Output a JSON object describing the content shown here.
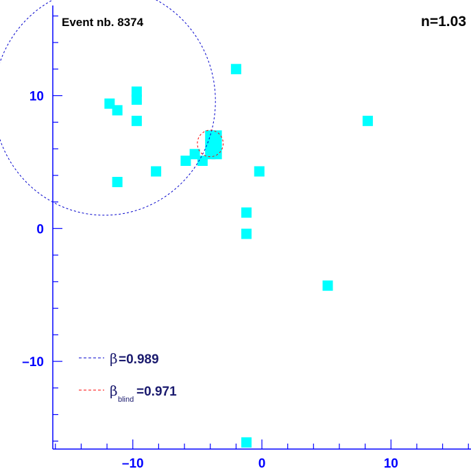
{
  "colors": {
    "axis": "#0000ff",
    "text": "#1a1a6e",
    "hit": "#00ffff",
    "ring_beta": "#0000cc",
    "ring_blind": "#ff0000"
  },
  "header": {
    "event_label": "Event nb. 8374",
    "index_label": "n=1.03"
  },
  "legend": [
    {
      "symbol": "β",
      "subscript": "",
      "value": "=0.989",
      "color": "#0000cc"
    },
    {
      "symbol": "β",
      "subscript": "blind",
      "value": "=0.971",
      "color": "#ff0000"
    }
  ],
  "chart_data": {
    "type": "scatter",
    "title": "",
    "xlabel": "",
    "ylabel": "",
    "xlim": [
      -16.2,
      16.2
    ],
    "ylim": [
      -16.6,
      17.2
    ],
    "x_ticks": [
      -10,
      0,
      10
    ],
    "y_ticks": [
      -10,
      0,
      10
    ],
    "x_tick_labels": [
      "–10",
      "0",
      "10"
    ],
    "y_tick_labels": [
      "–10",
      "0",
      "10"
    ],
    "grid": false,
    "hits": [
      {
        "x": -11.8,
        "y": 9.4
      },
      {
        "x": -11.2,
        "y": 8.9
      },
      {
        "x": -9.7,
        "y": 10.3
      },
      {
        "x": -9.7,
        "y": 9.7
      },
      {
        "x": -9.7,
        "y": 8.1
      },
      {
        "x": -11.2,
        "y": 3.5
      },
      {
        "x": -8.2,
        "y": 4.3
      },
      {
        "x": -5.9,
        "y": 5.1
      },
      {
        "x": -5.2,
        "y": 5.6
      },
      {
        "x": -4.6,
        "y": 5.1
      },
      {
        "x": -4.0,
        "y": 5.6
      },
      {
        "x": -3.5,
        "y": 5.6
      },
      {
        "x": -4.0,
        "y": 6.3
      },
      {
        "x": -3.5,
        "y": 6.3
      },
      {
        "x": -4.0,
        "y": 7.0
      },
      {
        "x": -3.5,
        "y": 7.0
      },
      {
        "x": -2.0,
        "y": 12.0
      },
      {
        "x": -0.2,
        "y": 4.3
      },
      {
        "x": -1.2,
        "y": 1.2
      },
      {
        "x": -1.2,
        "y": -0.4
      },
      {
        "x": 5.1,
        "y": -4.3
      },
      {
        "x": 8.2,
        "y": 8.1
      },
      {
        "x": -1.2,
        "y": -16.1
      }
    ],
    "rings": [
      {
        "name": "β=0.989",
        "cx": -12.2,
        "cy": 9.6,
        "r": 8.6
      },
      {
        "name": "βblind=0.971",
        "cx": -4.0,
        "cy": 6.4,
        "r": 1.0
      }
    ]
  }
}
